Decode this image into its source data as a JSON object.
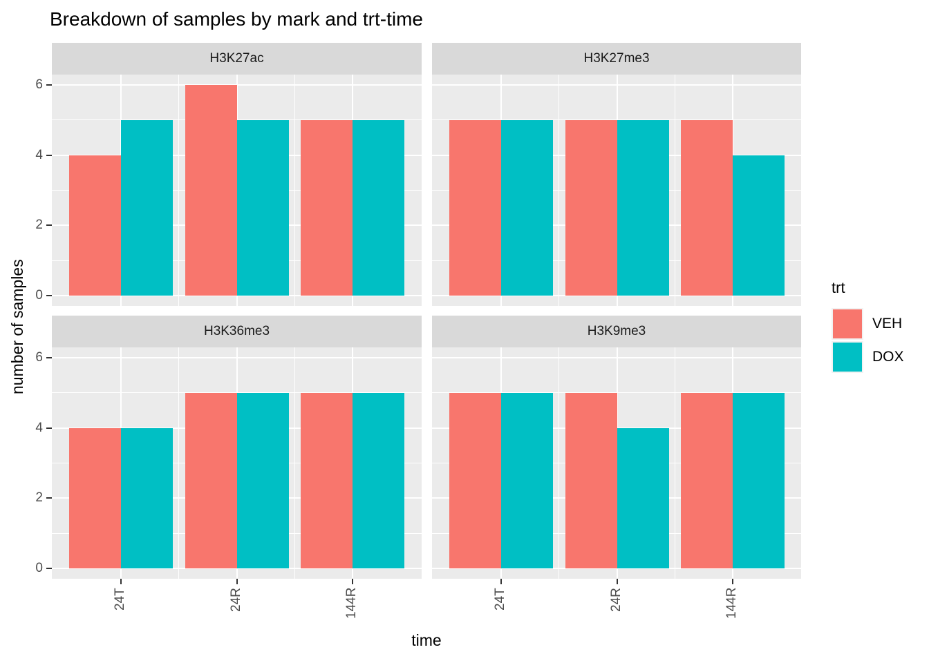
{
  "title": "Breakdown of samples by mark and trt-time",
  "axes": {
    "x_title": "time",
    "y_title": "number of samples",
    "x_tick_labels": [
      "24T",
      "24R",
      "144R"
    ],
    "y_tick_labels": [
      "0",
      "2",
      "4",
      "6"
    ]
  },
  "legend": {
    "title": "trt",
    "entries": [
      {
        "label": "VEH",
        "color": "#F8766D"
      },
      {
        "label": "DOX",
        "color": "#00BFC4"
      }
    ]
  },
  "colors": {
    "veh": "#F8766D",
    "dox": "#00BFC4",
    "panel_background": "#EBEBEB",
    "strip_background": "#D9D9D9",
    "gridline": "#FFFFFF",
    "axis_text": "#4D4D4D",
    "tick_mark": "#333333"
  },
  "chart_data": {
    "type": "bar",
    "title": "Breakdown of samples by mark and trt-time",
    "xlabel": "time",
    "ylabel": "number of samples",
    "categories": [
      "24T",
      "24R",
      "144R"
    ],
    "facets": [
      {
        "name": "H3K27ac",
        "series": [
          {
            "name": "VEH",
            "values": [
              4,
              6,
              5
            ]
          },
          {
            "name": "DOX",
            "values": [
              5,
              5,
              5
            ]
          }
        ]
      },
      {
        "name": "H3K27me3",
        "series": [
          {
            "name": "VEH",
            "values": [
              5,
              5,
              5
            ]
          },
          {
            "name": "DOX",
            "values": [
              5,
              5,
              4
            ]
          }
        ]
      },
      {
        "name": "H3K36me3",
        "series": [
          {
            "name": "VEH",
            "values": [
              4,
              5,
              5
            ]
          },
          {
            "name": "DOX",
            "values": [
              4,
              5,
              5
            ]
          }
        ]
      },
      {
        "name": "H3K9me3",
        "series": [
          {
            "name": "VEH",
            "values": [
              5,
              5,
              5
            ]
          },
          {
            "name": "DOX",
            "values": [
              5,
              4,
              5
            ]
          }
        ]
      }
    ],
    "ylim": [
      0,
      6
    ],
    "y_major_breaks": [
      0,
      2,
      4,
      6
    ],
    "y_minor_breaks": [
      1,
      3,
      5
    ],
    "bar_orientation": "vertical",
    "dodge": true,
    "grid": true,
    "legend_title": "trt",
    "legend_position": "right",
    "facet_layout": "wrap-2x2"
  }
}
